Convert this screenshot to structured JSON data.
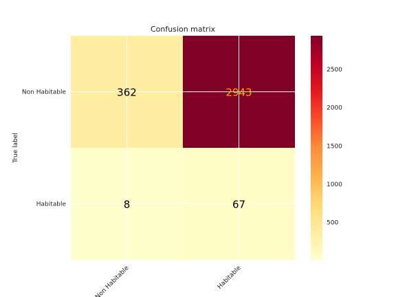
{
  "chart_data": {
    "type": "heatmap",
    "title": "Confusion matrix",
    "ylabel": "True label",
    "xlabel": "",
    "row_labels": [
      "Non Habitable",
      "Habitable"
    ],
    "col_labels": [
      "Non Habitable",
      "Habitable"
    ],
    "values": [
      [
        362,
        2943
      ],
      [
        8,
        67
      ]
    ],
    "colormap": "YlOrRd",
    "value_range": [
      8,
      2943
    ],
    "colorbar_ticks": [
      500,
      1000,
      1500,
      2000,
      2500
    ],
    "grid": true,
    "text_color_light": "#000000",
    "text_color_dark": "#ffa500"
  }
}
